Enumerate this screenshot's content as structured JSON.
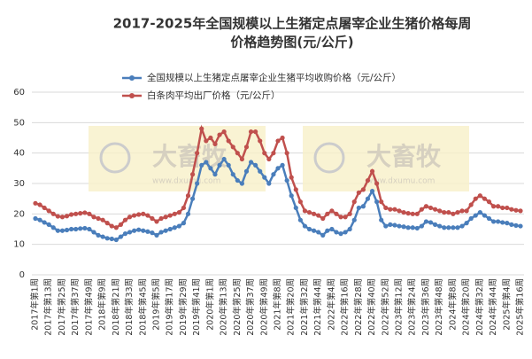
{
  "chart_data": {
    "type": "line",
    "title": [
      "2017-2025年全国规模以上生猪定点屠宰企业生猪价格每周",
      "价格趋势图(元/公斤)"
    ],
    "categories": [
      "2017年第1周",
      null,
      null,
      "2017年第13周",
      null,
      null,
      "2017年第25周",
      null,
      null,
      "2017年第37周",
      null,
      null,
      "2017年第49周",
      null,
      null,
      "2018年第9周",
      null,
      null,
      "2018年第21周",
      null,
      null,
      "2018年第33周",
      null,
      null,
      "2018年第45周",
      null,
      null,
      "2019年第5周",
      null,
      null,
      "2019年第17周",
      null,
      null,
      "2019年第29周",
      null,
      null,
      "2019年第41周",
      null,
      null,
      "2020年第1周",
      null,
      null,
      "2020年第13周",
      null,
      null,
      "2020年第25周",
      null,
      null,
      "2020年第37周",
      null,
      null,
      "2020年第49周",
      null,
      null,
      "2021年第8周",
      null,
      null,
      "2021年第20周",
      null,
      null,
      "2021年第32周",
      null,
      null,
      "2021年第44周",
      null,
      null,
      "2022年第4周",
      null,
      null,
      "2022年第16周",
      null,
      null,
      "2022年第28周",
      null,
      null,
      "2022年第40周",
      null,
      null,
      "2022年第52周",
      null,
      null,
      "2023年第12周",
      null,
      null,
      "2023年第24周",
      null,
      null,
      "2023年第36周",
      null,
      null,
      "2023年第48周",
      null,
      null,
      "2024年第8周",
      null,
      null,
      "2024年第20周",
      null,
      null,
      "2024年第32周",
      null,
      null,
      "2024年第44周",
      null,
      null,
      "2025年第4周",
      null,
      null,
      "2025年第16周"
    ],
    "series": [
      {
        "name": "全国规模以上生猪定点屠宰企业生猪平均收购价格（元/公斤）",
        "color": "#4a7ebb",
        "values": [
          18.5,
          18,
          17.2,
          16.5,
          15.5,
          14.5,
          14.5,
          14.7,
          15,
          15,
          15.2,
          15.3,
          15,
          14,
          13,
          12.5,
          12,
          11.8,
          11.5,
          12.5,
          13.5,
          14,
          14.5,
          14.8,
          14.5,
          14.2,
          13.8,
          13,
          14,
          14.5,
          15,
          15.5,
          16,
          17,
          20,
          25,
          30,
          36,
          37,
          35,
          33,
          36,
          38,
          36,
          33,
          31,
          30,
          34,
          37,
          36,
          34,
          32,
          30,
          33,
          35,
          36,
          31,
          26,
          22,
          18,
          16,
          15,
          14.5,
          14,
          13,
          14.5,
          15,
          14,
          13.5,
          14,
          15,
          18,
          22,
          22.5,
          25,
          27.5,
          24,
          18,
          16,
          16.5,
          16.3,
          16,
          15.8,
          15.5,
          15.5,
          15.3,
          16,
          17.5,
          17.2,
          16.5,
          16,
          15.5,
          15.5,
          15.5,
          15.5,
          16,
          17,
          18.5,
          19.5,
          20.5,
          19.5,
          18.5,
          17.5,
          17.5,
          17.2,
          17,
          16.5,
          16.2,
          16
        ]
      },
      {
        "name": "白条肉平均出厂价格（元/公斤）",
        "color": "#c0504d",
        "values": [
          23.5,
          23,
          22,
          21,
          20,
          19.2,
          19,
          19.3,
          19.8,
          20,
          20.2,
          20.4,
          20,
          19,
          18.5,
          18,
          17,
          16,
          15.5,
          16.5,
          18,
          19,
          19.5,
          19.8,
          20,
          19.5,
          18.5,
          17.5,
          18.5,
          19,
          19.5,
          20,
          20.5,
          22,
          26,
          33,
          40,
          48,
          44,
          45,
          43,
          46,
          47,
          44,
          42,
          40,
          38,
          42,
          47,
          47,
          44,
          40,
          38,
          40,
          44,
          45,
          40,
          32,
          28,
          24,
          21,
          20.5,
          20,
          19.5,
          18.5,
          20,
          21,
          20,
          19,
          19,
          20,
          24,
          27,
          28,
          31,
          34,
          30,
          24,
          22,
          21.5,
          21.5,
          21,
          20.5,
          20.2,
          20,
          20,
          21.5,
          22.5,
          22,
          21.5,
          21,
          20.5,
          20.5,
          20,
          20.5,
          21,
          21,
          23,
          25,
          26,
          25,
          24,
          22.5,
          22.5,
          22,
          22,
          21.5,
          21.2,
          21
        ]
      }
    ],
    "ylim": [
      0,
      60
    ],
    "yticks": [
      0,
      10,
      20,
      30,
      40,
      50,
      60
    ],
    "grid": true,
    "watermark": [
      "大畜牧",
      "www.dxumu.com"
    ]
  }
}
